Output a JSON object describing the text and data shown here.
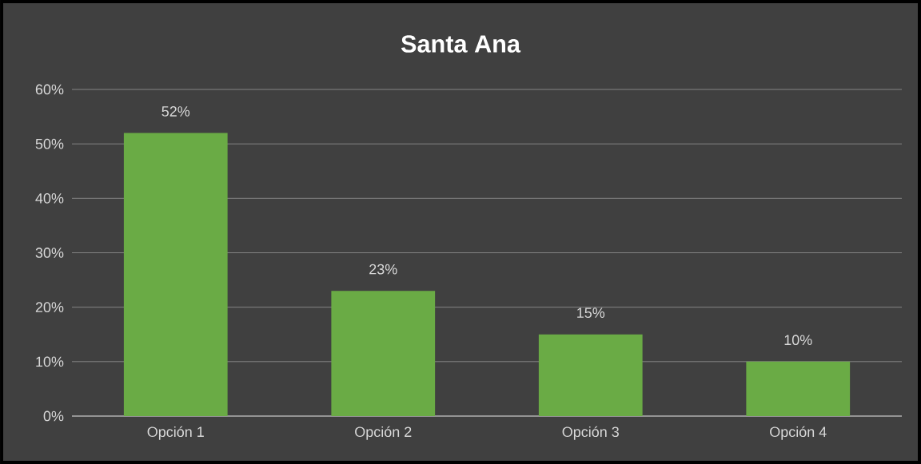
{
  "chart_data": {
    "type": "bar",
    "title": "Santa Ana",
    "categories": [
      "Opción 1",
      "Opción 2",
      "Opción 3",
      "Opción 4"
    ],
    "values": [
      52,
      23,
      15,
      10
    ],
    "value_labels": [
      "52%",
      "23%",
      "15%",
      "10%"
    ],
    "color": "#6aab45",
    "ylim": [
      0,
      60
    ],
    "yticks": [
      {
        "value": 0,
        "label": "0%"
      },
      {
        "value": 10,
        "label": "10%"
      },
      {
        "value": 20,
        "label": "20%"
      },
      {
        "value": 30,
        "label": "30%"
      },
      {
        "value": 40,
        "label": "40%"
      },
      {
        "value": 50,
        "label": "50%"
      },
      {
        "value": 60,
        "label": "60%"
      }
    ],
    "grid": "y"
  }
}
